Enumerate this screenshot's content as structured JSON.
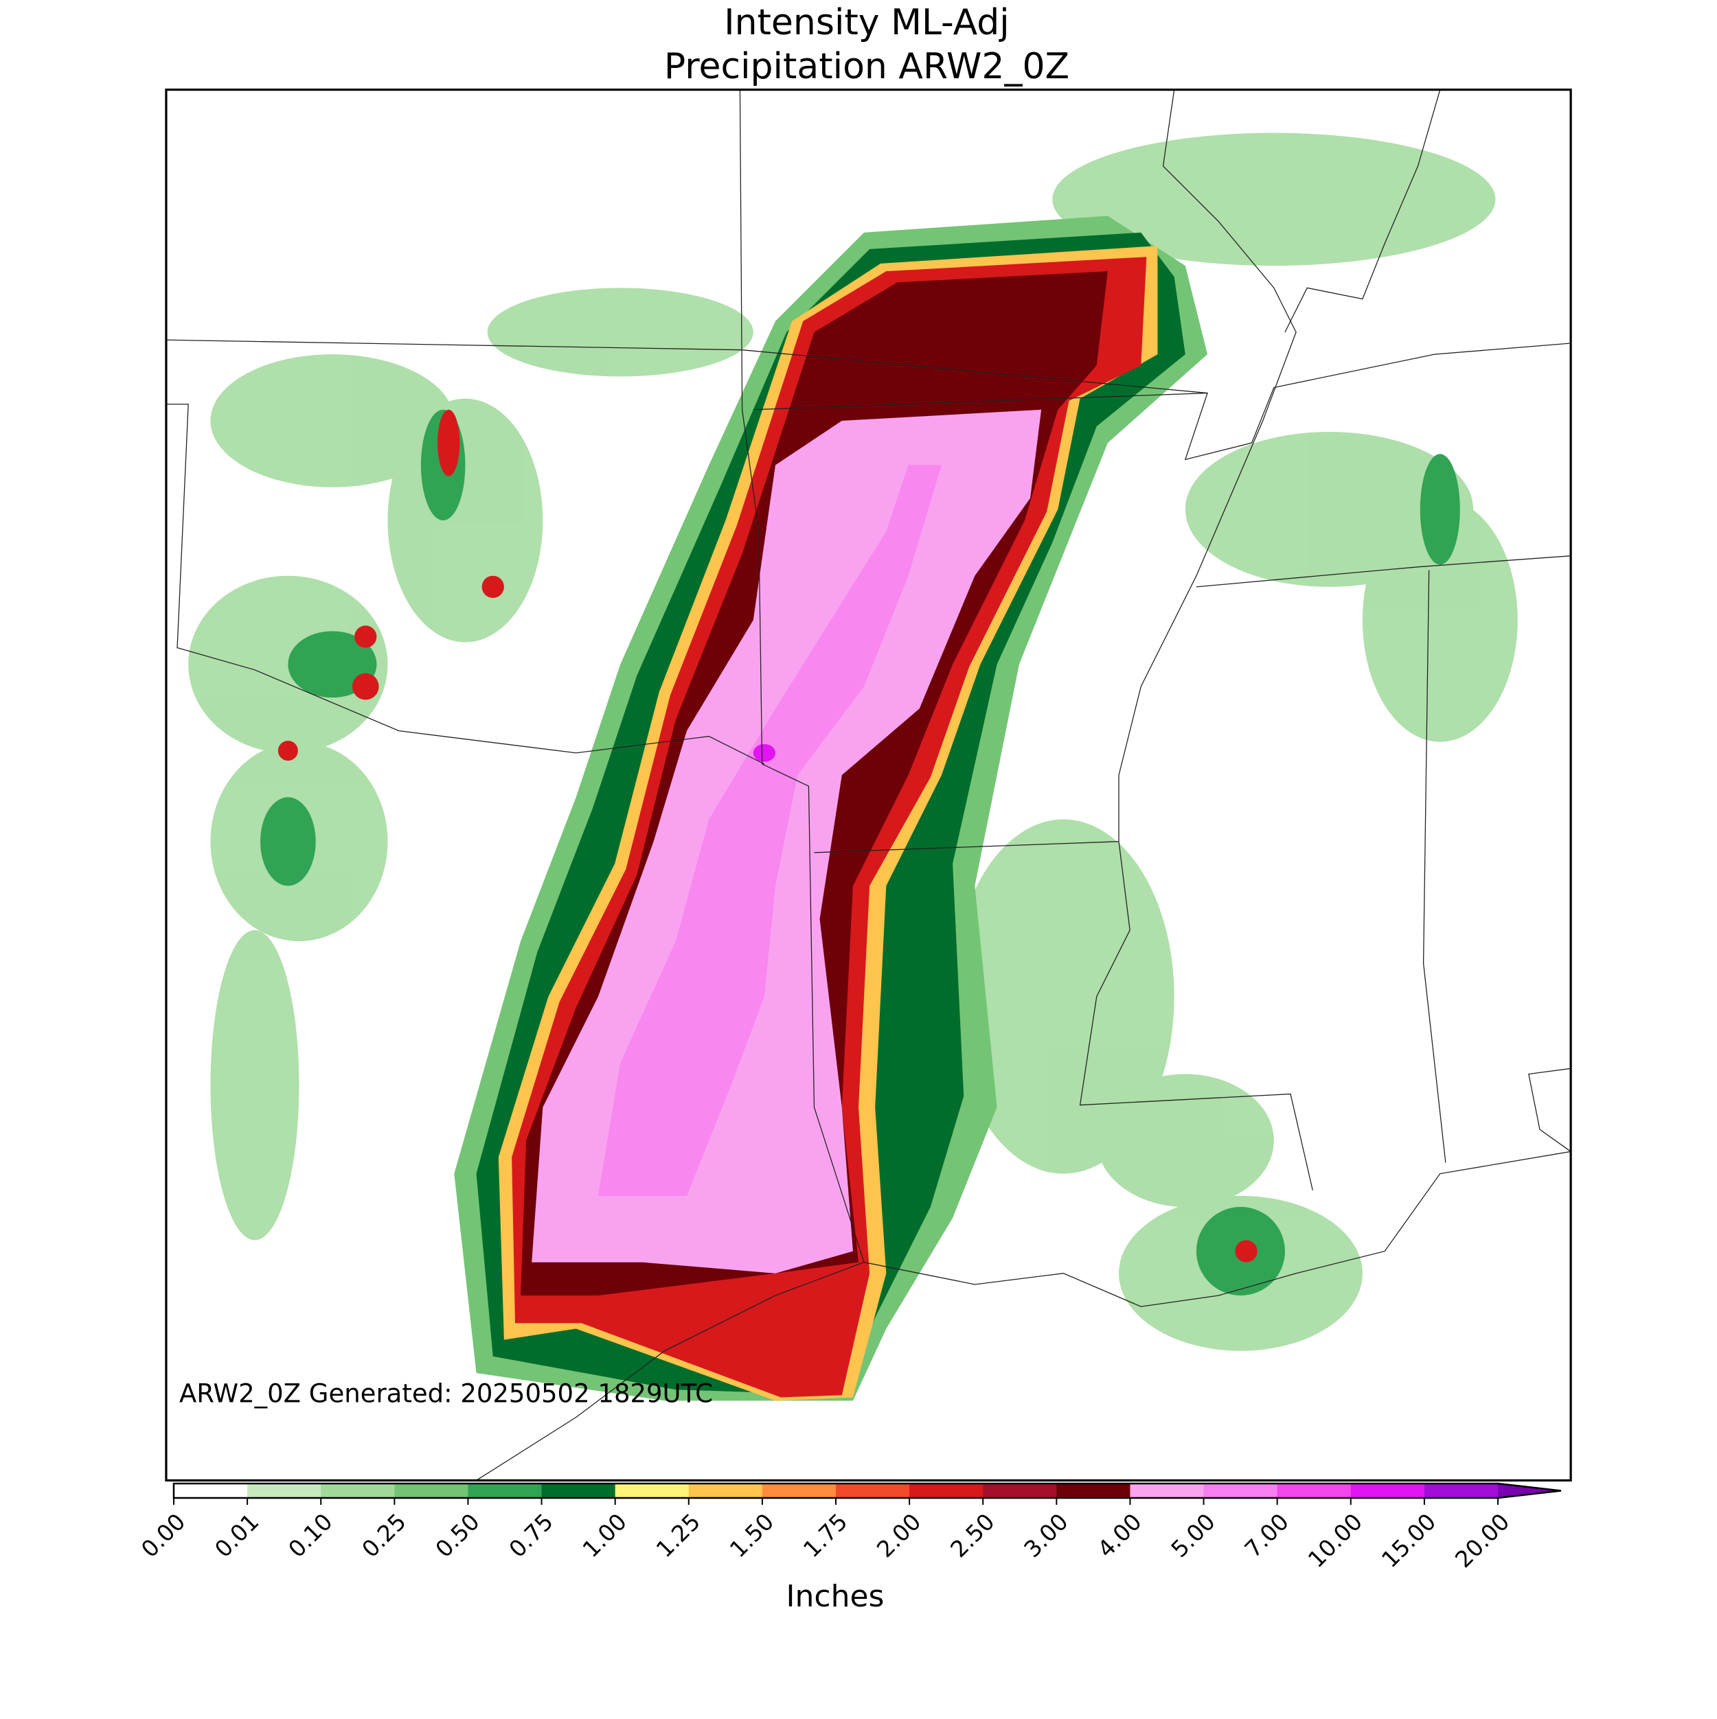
{
  "chart_data": {
    "type": "map",
    "title": [
      "Intensity ML-Adj",
      "Precipitation ARW2_0Z"
    ],
    "annotation": "ARW2_0Z Generated: 20250502 1829UTC",
    "colorbar": {
      "label": "Inches",
      "extend": "max",
      "ticks": [
        {
          "value": 0,
          "label": "0.00"
        },
        {
          "value": 0.01,
          "label": "0.01"
        },
        {
          "value": 0.1,
          "label": "0.10"
        },
        {
          "value": 0.25,
          "label": "0.25"
        },
        {
          "value": 0.5,
          "label": "0.50"
        },
        {
          "value": 0.75,
          "label": "0.75"
        },
        {
          "value": 1,
          "label": "1.00"
        },
        {
          "value": 1.25,
          "label": "1.25"
        },
        {
          "value": 1.5,
          "label": "1.50"
        },
        {
          "value": 1.75,
          "label": "1.75"
        },
        {
          "value": 2,
          "label": "2.00"
        },
        {
          "value": 2.5,
          "label": "2.50"
        },
        {
          "value": 3,
          "label": "3.00"
        },
        {
          "value": 4,
          "label": "4.00"
        },
        {
          "value": 5,
          "label": "5.00"
        },
        {
          "value": 7,
          "label": "7.00"
        },
        {
          "value": 10,
          "label": "10.00"
        },
        {
          "value": 15,
          "label": "15.00"
        },
        {
          "value": 20,
          "label": "20.00"
        }
      ],
      "colors": [
        "#ffffff",
        "#c7e9c0",
        "#a1d99b",
        "#74c476",
        "#31a354",
        "#006d2c",
        "#fff47a",
        "#fdc44e",
        "#fd8d3c",
        "#f04a2a",
        "#d7191c",
        "#a50f2c",
        "#6e0008",
        "#f9a3f0",
        "#f77ff0",
        "#f347ed",
        "#e015f0",
        "#a10ed8"
      ],
      "over_color": "#7a00b0"
    }
  }
}
